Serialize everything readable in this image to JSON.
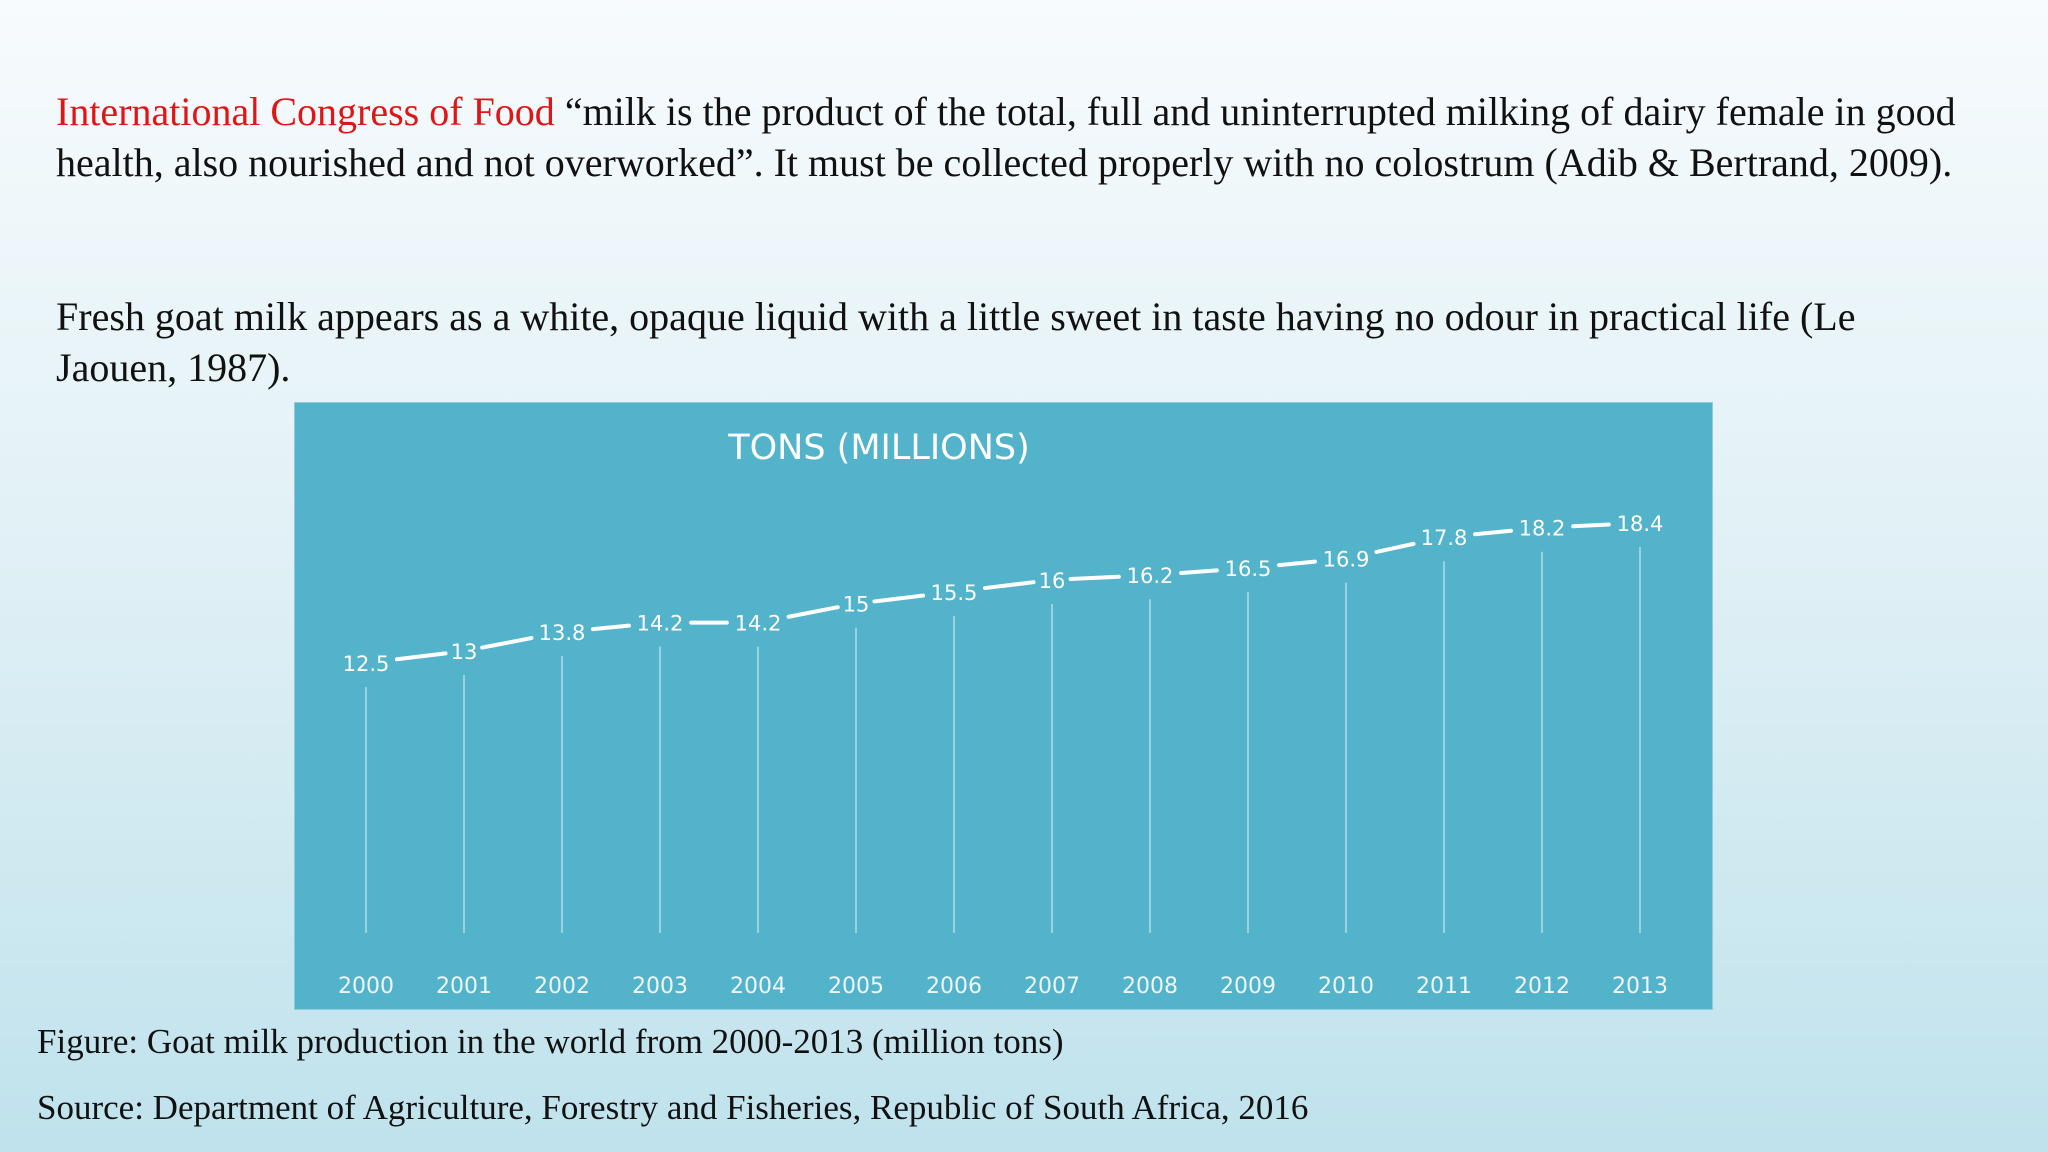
{
  "text": {
    "para1_red": "International Congress of Food",
    "para1_rest": " “milk is the product of the total, full and uninterrupted milking of dairy female in good health, also nourished and not overworked”. It must be collected properly with no colostrum (Adib & Bertrand, 2009).",
    "para2": "Fresh goat milk appears as a white, opaque liquid with a little sweet in taste having no odour in practical life (Le Jaouen, 1987).",
    "caption": "Figure: Goat milk production in the world from 2000-2013 (million tons)",
    "source": "Source: Department of Agriculture, Forestry and Fisheries, Republic of South Africa, 2016"
  },
  "colors": {
    "accent_red": "#e01515",
    "chart_bg": "#53b3cb",
    "chart_line": "#ffffff"
  },
  "chart_data": {
    "type": "line",
    "title": "TONS (MILLIONS)",
    "categories": [
      "2000",
      "2001",
      "2002",
      "2003",
      "2004",
      "2005",
      "2006",
      "2007",
      "2008",
      "2009",
      "2010",
      "2011",
      "2012",
      "2013"
    ],
    "values": [
      12.5,
      13,
      13.8,
      14.2,
      14.2,
      15,
      15.5,
      16,
      16.2,
      16.5,
      16.9,
      17.8,
      18.2,
      18.4
    ],
    "value_labels": [
      "12.5",
      "13",
      "13.8",
      "14.2",
      "14.2",
      "15",
      "15.5",
      "16",
      "16.2",
      "16.5",
      "16.9",
      "17.8",
      "18.2",
      "18.4"
    ],
    "xlabel": "",
    "ylabel": "",
    "ylim": [
      0,
      20
    ],
    "grid": false,
    "drop_lines": true,
    "data_labels": true
  }
}
